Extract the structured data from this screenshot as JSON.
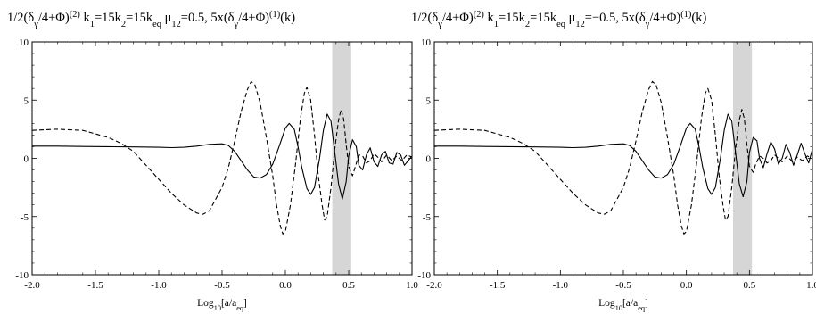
{
  "chart_data": [
    {
      "type": "line",
      "title": "1/2(δγ/4+Φ)(2)  k1=15k2=15keq  μ12=0.5,  5x(δγ/4+Φ)(1)(k)",
      "title_runs": [
        {
          "t": "1/2(δ",
          "s": "n"
        },
        {
          "t": "γ",
          "s": "sub"
        },
        {
          "t": "/4+Φ)",
          "s": "n"
        },
        {
          "t": "(2)",
          "s": "sup"
        },
        {
          "t": "  k",
          "s": "n"
        },
        {
          "t": "1",
          "s": "sub"
        },
        {
          "t": "=15k",
          "s": "n"
        },
        {
          "t": "2",
          "s": "sub"
        },
        {
          "t": "=15k",
          "s": "n"
        },
        {
          "t": "eq",
          "s": "sub"
        },
        {
          "t": "  μ",
          "s": "n"
        },
        {
          "t": "12",
          "s": "sub"
        },
        {
          "t": "=0.5,  5x(δ",
          "s": "n"
        },
        {
          "t": "γ",
          "s": "sub"
        },
        {
          "t": "/4+Φ)",
          "s": "n"
        },
        {
          "t": "(1)",
          "s": "sup"
        },
        {
          "t": "(k)",
          "s": "n"
        }
      ],
      "xlabel": "Log10[a/aeq]",
      "xlabel_runs": [
        {
          "t": "Log",
          "s": "n"
        },
        {
          "t": "10",
          "s": "sub"
        },
        {
          "t": "[a/a",
          "s": "n"
        },
        {
          "t": "eq",
          "s": "sub"
        },
        {
          "t": "]",
          "s": "n"
        }
      ],
      "ylabel": "",
      "xlim": [
        -2.0,
        1.0
      ],
      "ylim": [
        -10,
        10
      ],
      "xticks": [
        "-2.0",
        "-1.5",
        "-1.0",
        "-0.5",
        "0.0",
        "0.5",
        "1.0"
      ],
      "yticks": [
        "-10",
        "-5",
        "0",
        "5",
        "10"
      ],
      "shaded_band": [
        0.37,
        0.52
      ],
      "series": [
        {
          "style": "solid",
          "points": [
            [
              -2.0,
              1.05
            ],
            [
              -1.8,
              1.05
            ],
            [
              -1.6,
              1.02
            ],
            [
              -1.4,
              1.0
            ],
            [
              -1.2,
              0.98
            ],
            [
              -1.0,
              0.95
            ],
            [
              -0.9,
              0.92
            ],
            [
              -0.8,
              0.95
            ],
            [
              -0.7,
              1.05
            ],
            [
              -0.6,
              1.2
            ],
            [
              -0.5,
              1.25
            ],
            [
              -0.45,
              1.1
            ],
            [
              -0.4,
              0.6
            ],
            [
              -0.35,
              -0.2
            ],
            [
              -0.3,
              -1.0
            ],
            [
              -0.25,
              -1.6
            ],
            [
              -0.2,
              -1.7
            ],
            [
              -0.15,
              -1.4
            ],
            [
              -0.1,
              -0.5
            ],
            [
              -0.05,
              1.0
            ],
            [
              0.0,
              2.6
            ],
            [
              0.03,
              3.0
            ],
            [
              0.07,
              2.5
            ],
            [
              0.1,
              1.0
            ],
            [
              0.13,
              -0.8
            ],
            [
              0.17,
              -2.6
            ],
            [
              0.2,
              -3.1
            ],
            [
              0.23,
              -2.5
            ],
            [
              0.27,
              0.0
            ],
            [
              0.3,
              2.4
            ],
            [
              0.33,
              3.8
            ],
            [
              0.36,
              3.2
            ],
            [
              0.39,
              0.5
            ],
            [
              0.42,
              -2.2
            ],
            [
              0.45,
              -3.5
            ],
            [
              0.48,
              -2.0
            ],
            [
              0.5,
              0.2
            ],
            [
              0.53,
              1.6
            ],
            [
              0.56,
              1.0
            ],
            [
              0.58,
              -0.6
            ],
            [
              0.61,
              -1.0
            ],
            [
              0.64,
              0.3
            ],
            [
              0.67,
              0.9
            ],
            [
              0.7,
              -0.3
            ],
            [
              0.73,
              -0.7
            ],
            [
              0.76,
              0.3
            ],
            [
              0.79,
              0.6
            ],
            [
              0.82,
              -0.4
            ],
            [
              0.85,
              -0.5
            ],
            [
              0.88,
              0.5
            ],
            [
              0.91,
              0.3
            ],
            [
              0.94,
              -0.6
            ],
            [
              0.97,
              -0.2
            ],
            [
              1.0,
              0.2
            ]
          ]
        },
        {
          "style": "dashed",
          "points": [
            [
              -2.0,
              2.4
            ],
            [
              -1.8,
              2.5
            ],
            [
              -1.6,
              2.4
            ],
            [
              -1.4,
              1.8
            ],
            [
              -1.3,
              1.3
            ],
            [
              -1.2,
              0.6
            ],
            [
              -1.1,
              -0.6
            ],
            [
              -1.0,
              -1.8
            ],
            [
              -0.9,
              -3.0
            ],
            [
              -0.8,
              -4.0
            ],
            [
              -0.7,
              -4.7
            ],
            [
              -0.65,
              -4.8
            ],
            [
              -0.6,
              -4.5
            ],
            [
              -0.5,
              -2.5
            ],
            [
              -0.45,
              -0.8
            ],
            [
              -0.4,
              1.5
            ],
            [
              -0.35,
              4.0
            ],
            [
              -0.3,
              5.9
            ],
            [
              -0.27,
              6.6
            ],
            [
              -0.24,
              6.3
            ],
            [
              -0.2,
              4.8
            ],
            [
              -0.15,
              1.8
            ],
            [
              -0.1,
              -1.5
            ],
            [
              -0.07,
              -4.0
            ],
            [
              -0.04,
              -5.8
            ],
            [
              -0.02,
              -6.5
            ],
            [
              0.0,
              -6.3
            ],
            [
              0.04,
              -4.0
            ],
            [
              0.08,
              -0.5
            ],
            [
              0.12,
              3.5
            ],
            [
              0.15,
              5.6
            ],
            [
              0.17,
              6.1
            ],
            [
              0.2,
              5.0
            ],
            [
              0.23,
              2.0
            ],
            [
              0.26,
              -1.5
            ],
            [
              0.29,
              -4.0
            ],
            [
              0.31,
              -5.3
            ],
            [
              0.33,
              -5.0
            ],
            [
              0.36,
              -2.5
            ],
            [
              0.39,
              0.8
            ],
            [
              0.42,
              3.3
            ],
            [
              0.44,
              4.2
            ],
            [
              0.46,
              3.4
            ],
            [
              0.48,
              1.2
            ],
            [
              0.5,
              -0.7
            ],
            [
              0.53,
              -1.5
            ],
            [
              0.55,
              -0.8
            ],
            [
              0.58,
              0.3
            ],
            [
              0.61,
              0.2
            ],
            [
              0.64,
              -0.4
            ],
            [
              0.67,
              -0.2
            ],
            [
              0.7,
              0.4
            ],
            [
              0.73,
              0.1
            ],
            [
              0.76,
              -0.3
            ],
            [
              0.8,
              0.3
            ],
            [
              0.84,
              -0.2
            ],
            [
              0.88,
              0.2
            ],
            [
              0.92,
              -0.2
            ],
            [
              0.96,
              0.3
            ],
            [
              1.0,
              0.1
            ]
          ]
        }
      ]
    },
    {
      "type": "line",
      "title": "1/2(δγ/4+Φ)(2)  k1=15k2=15keq  μ12=−0.5,  5x(δγ/4+Φ)(1)(k)",
      "title_runs": [
        {
          "t": "1/2(δ",
          "s": "n"
        },
        {
          "t": "γ",
          "s": "sub"
        },
        {
          "t": "/4+Φ)",
          "s": "n"
        },
        {
          "t": "(2)",
          "s": "sup"
        },
        {
          "t": "  k",
          "s": "n"
        },
        {
          "t": "1",
          "s": "sub"
        },
        {
          "t": "=15k",
          "s": "n"
        },
        {
          "t": "2",
          "s": "sub"
        },
        {
          "t": "=15k",
          "s": "n"
        },
        {
          "t": "eq",
          "s": "sub"
        },
        {
          "t": "  μ",
          "s": "n"
        },
        {
          "t": "12",
          "s": "sub"
        },
        {
          "t": "=−0.5,  5x(δ",
          "s": "n"
        },
        {
          "t": "γ",
          "s": "sub"
        },
        {
          "t": "/4+Φ)",
          "s": "n"
        },
        {
          "t": "(1)",
          "s": "sup"
        },
        {
          "t": "(k)",
          "s": "n"
        }
      ],
      "xlabel": "Log10[a/aeq]",
      "xlabel_runs": [
        {
          "t": "Log",
          "s": "n"
        },
        {
          "t": "10",
          "s": "sub"
        },
        {
          "t": "[a/a",
          "s": "n"
        },
        {
          "t": "eq",
          "s": "sub"
        },
        {
          "t": "]",
          "s": "n"
        }
      ],
      "ylabel": "",
      "xlim": [
        -2.0,
        1.0
      ],
      "ylim": [
        -10,
        10
      ],
      "xticks": [
        "-2.0",
        "-1.5",
        "-1.0",
        "-0.5",
        "0.0",
        "0.5",
        "1.0"
      ],
      "yticks": [
        "-10",
        "-5",
        "0",
        "5",
        "10"
      ],
      "shaded_band": [
        0.37,
        0.52
      ],
      "series": [
        {
          "style": "solid",
          "points": [
            [
              -2.0,
              1.05
            ],
            [
              -1.8,
              1.05
            ],
            [
              -1.6,
              1.02
            ],
            [
              -1.4,
              1.0
            ],
            [
              -1.2,
              0.98
            ],
            [
              -1.0,
              0.95
            ],
            [
              -0.9,
              0.92
            ],
            [
              -0.8,
              0.95
            ],
            [
              -0.7,
              1.05
            ],
            [
              -0.6,
              1.2
            ],
            [
              -0.5,
              1.25
            ],
            [
              -0.45,
              1.1
            ],
            [
              -0.4,
              0.6
            ],
            [
              -0.35,
              -0.2
            ],
            [
              -0.3,
              -1.0
            ],
            [
              -0.25,
              -1.6
            ],
            [
              -0.2,
              -1.7
            ],
            [
              -0.15,
              -1.4
            ],
            [
              -0.1,
              -0.5
            ],
            [
              -0.05,
              1.0
            ],
            [
              0.0,
              2.6
            ],
            [
              0.03,
              3.0
            ],
            [
              0.07,
              2.5
            ],
            [
              0.1,
              1.0
            ],
            [
              0.13,
              -0.8
            ],
            [
              0.17,
              -2.6
            ],
            [
              0.2,
              -3.1
            ],
            [
              0.23,
              -2.5
            ],
            [
              0.27,
              0.0
            ],
            [
              0.3,
              2.4
            ],
            [
              0.33,
              3.8
            ],
            [
              0.36,
              3.2
            ],
            [
              0.39,
              0.5
            ],
            [
              0.42,
              -2.2
            ],
            [
              0.45,
              -3.3
            ],
            [
              0.48,
              -2.0
            ],
            [
              0.5,
              0.5
            ],
            [
              0.53,
              1.8
            ],
            [
              0.56,
              1.5
            ],
            [
              0.58,
              0.0
            ],
            [
              0.61,
              -0.8
            ],
            [
              0.64,
              0.4
            ],
            [
              0.67,
              1.4
            ],
            [
              0.7,
              0.8
            ],
            [
              0.73,
              -0.5
            ],
            [
              0.76,
              0.0
            ],
            [
              0.79,
              1.2
            ],
            [
              0.82,
              0.5
            ],
            [
              0.85,
              -0.6
            ],
            [
              0.88,
              0.3
            ],
            [
              0.91,
              1.3
            ],
            [
              0.94,
              0.4
            ],
            [
              0.97,
              -0.4
            ],
            [
              1.0,
              0.8
            ]
          ]
        },
        {
          "style": "dashed",
          "points": [
            [
              -2.0,
              2.4
            ],
            [
              -1.8,
              2.5
            ],
            [
              -1.6,
              2.4
            ],
            [
              -1.4,
              1.8
            ],
            [
              -1.3,
              1.3
            ],
            [
              -1.2,
              0.6
            ],
            [
              -1.1,
              -0.6
            ],
            [
              -1.0,
              -1.8
            ],
            [
              -0.9,
              -3.0
            ],
            [
              -0.8,
              -4.0
            ],
            [
              -0.7,
              -4.7
            ],
            [
              -0.65,
              -4.8
            ],
            [
              -0.6,
              -4.5
            ],
            [
              -0.5,
              -2.5
            ],
            [
              -0.45,
              -0.8
            ],
            [
              -0.4,
              1.5
            ],
            [
              -0.35,
              4.0
            ],
            [
              -0.3,
              5.9
            ],
            [
              -0.27,
              6.6
            ],
            [
              -0.24,
              6.3
            ],
            [
              -0.2,
              4.8
            ],
            [
              -0.15,
              1.8
            ],
            [
              -0.1,
              -1.5
            ],
            [
              -0.07,
              -4.0
            ],
            [
              -0.04,
              -5.8
            ],
            [
              -0.02,
              -6.5
            ],
            [
              0.0,
              -6.3
            ],
            [
              0.04,
              -4.0
            ],
            [
              0.08,
              -0.5
            ],
            [
              0.12,
              3.5
            ],
            [
              0.15,
              5.6
            ],
            [
              0.17,
              6.0
            ],
            [
              0.2,
              5.0
            ],
            [
              0.23,
              2.0
            ],
            [
              0.26,
              -1.5
            ],
            [
              0.29,
              -4.0
            ],
            [
              0.31,
              -5.3
            ],
            [
              0.33,
              -5.0
            ],
            [
              0.36,
              -2.5
            ],
            [
              0.39,
              0.8
            ],
            [
              0.42,
              3.3
            ],
            [
              0.44,
              4.2
            ],
            [
              0.46,
              3.4
            ],
            [
              0.48,
              1.2
            ],
            [
              0.5,
              -0.7
            ],
            [
              0.53,
              -1.2
            ],
            [
              0.55,
              -0.5
            ],
            [
              0.58,
              0.2
            ],
            [
              0.61,
              0.0
            ],
            [
              0.64,
              -0.4
            ],
            [
              0.67,
              -0.2
            ],
            [
              0.7,
              0.3
            ],
            [
              0.73,
              0.0
            ],
            [
              0.76,
              -0.3
            ],
            [
              0.8,
              0.2
            ],
            [
              0.84,
              -0.3
            ],
            [
              0.88,
              0.1
            ],
            [
              0.92,
              -0.2
            ],
            [
              0.96,
              0.2
            ],
            [
              1.0,
              0.0
            ]
          ]
        }
      ]
    }
  ]
}
